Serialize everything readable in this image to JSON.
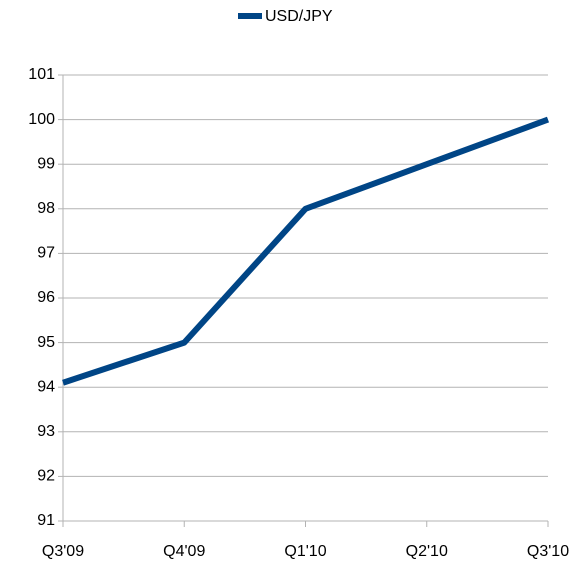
{
  "chart_data": {
    "type": "line",
    "categories": [
      "Q3'09",
      "Q4'09",
      "Q1'10",
      "Q2'10",
      "Q3'10"
    ],
    "series": [
      {
        "name": "USD/JPY",
        "color": "#004586",
        "values": [
          94.1,
          95,
          98,
          99,
          100
        ]
      }
    ],
    "ylim": [
      91,
      101
    ],
    "yticks": [
      91,
      92,
      93,
      94,
      95,
      96,
      97,
      98,
      99,
      100,
      101
    ],
    "grid": true,
    "legend": "top"
  }
}
